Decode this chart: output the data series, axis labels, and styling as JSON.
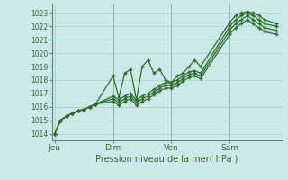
{
  "title": "",
  "xlabel": "Pression niveau de la mer( hPa )",
  "bg_color": "#cce8e8",
  "plot_bg_color": "#cce8e8",
  "grid_color": "#aacccc",
  "line_color": "#2d6e2d",
  "marker_color": "#2d6e2d",
  "ylim": [
    1013.5,
    1023.7
  ],
  "yticks": [
    1014,
    1015,
    1016,
    1017,
    1018,
    1019,
    1020,
    1021,
    1022,
    1023
  ],
  "xtick_labels": [
    "Jeu",
    "Dim",
    "Ven",
    "Sam"
  ],
  "xtick_positions": [
    0,
    10,
    20,
    30
  ],
  "xlim": [
    -0.5,
    39
  ],
  "vline_positions": [
    10,
    20,
    30
  ],
  "series1_x": [
    0,
    1,
    2,
    3,
    4,
    5,
    6,
    7,
    10,
    11,
    12,
    13,
    14,
    15,
    16,
    17,
    18,
    19,
    20,
    21,
    22,
    23,
    24,
    25,
    30,
    31,
    32,
    33,
    34,
    35,
    36,
    38
  ],
  "series1_y": [
    1014.0,
    1015.0,
    1015.3,
    1015.5,
    1015.7,
    1015.8,
    1016.0,
    1016.2,
    1018.3,
    1016.7,
    1018.5,
    1018.8,
    1016.5,
    1019.0,
    1019.5,
    1018.5,
    1018.8,
    1018.0,
    1017.8,
    1018.3,
    1018.5,
    1019.0,
    1019.5,
    1019.0,
    1022.3,
    1022.8,
    1023.0,
    1023.1,
    1023.0,
    1022.8,
    1022.5,
    1022.2
  ],
  "series2_x": [
    0,
    1,
    2,
    3,
    4,
    5,
    6,
    7,
    10,
    11,
    12,
    13,
    14,
    15,
    16,
    17,
    18,
    19,
    20,
    21,
    22,
    23,
    24,
    25,
    30,
    31,
    32,
    33,
    34,
    35,
    36,
    38
  ],
  "series2_y": [
    1014.0,
    1015.0,
    1015.3,
    1015.5,
    1015.7,
    1015.8,
    1016.0,
    1016.2,
    1016.8,
    1016.5,
    1016.8,
    1017.0,
    1016.5,
    1016.8,
    1017.0,
    1017.3,
    1017.6,
    1017.8,
    1017.8,
    1018.0,
    1018.3,
    1018.6,
    1018.7,
    1018.5,
    1022.0,
    1022.5,
    1022.8,
    1023.0,
    1022.8,
    1022.5,
    1022.2,
    1022.0
  ],
  "series3_x": [
    0,
    1,
    2,
    3,
    4,
    5,
    6,
    7,
    10,
    11,
    12,
    13,
    14,
    15,
    16,
    17,
    18,
    19,
    20,
    21,
    22,
    23,
    24,
    25,
    30,
    31,
    32,
    33,
    34,
    35,
    36,
    38
  ],
  "series3_y": [
    1014.0,
    1015.0,
    1015.3,
    1015.5,
    1015.7,
    1015.8,
    1016.0,
    1016.2,
    1016.6,
    1016.3,
    1016.6,
    1016.8,
    1016.3,
    1016.6,
    1016.8,
    1017.1,
    1017.4,
    1017.6,
    1017.6,
    1017.8,
    1018.1,
    1018.4,
    1018.5,
    1018.3,
    1021.7,
    1022.2,
    1022.5,
    1022.8,
    1022.5,
    1022.2,
    1021.9,
    1021.7
  ],
  "series4_x": [
    0,
    1,
    2,
    3,
    4,
    5,
    6,
    7,
    10,
    11,
    12,
    13,
    14,
    15,
    16,
    17,
    18,
    19,
    20,
    21,
    22,
    23,
    24,
    25,
    30,
    31,
    32,
    33,
    34,
    35,
    36,
    38
  ],
  "series4_y": [
    1014.0,
    1015.0,
    1015.3,
    1015.5,
    1015.7,
    1015.8,
    1016.0,
    1016.2,
    1016.4,
    1016.1,
    1016.4,
    1016.6,
    1016.1,
    1016.4,
    1016.6,
    1016.9,
    1017.2,
    1017.4,
    1017.4,
    1017.6,
    1017.9,
    1018.2,
    1018.3,
    1018.1,
    1021.4,
    1021.9,
    1022.2,
    1022.5,
    1022.2,
    1021.9,
    1021.6,
    1021.4
  ]
}
